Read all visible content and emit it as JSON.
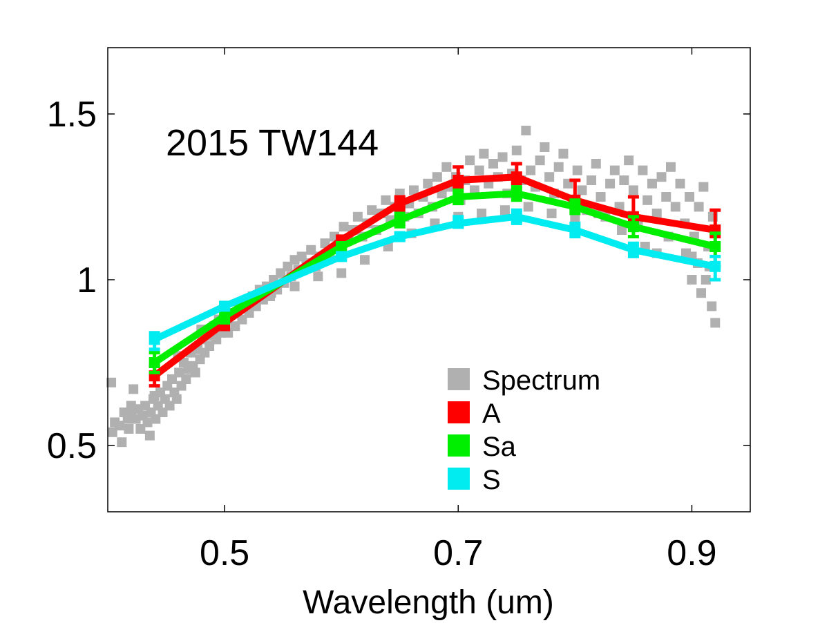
{
  "chart_data": {
    "type": "line",
    "title": "2015 TW144",
    "xlabel": "Wavelength (um)",
    "ylabel": "",
    "xlim": [
      0.4,
      0.95
    ],
    "ylim": [
      0.3,
      1.7
    ],
    "xticks": [
      0.5,
      0.7,
      0.9
    ],
    "xtick_labels": [
      "0.5",
      "0.7",
      "0.9"
    ],
    "yticks": [
      0.5,
      1.0,
      1.5
    ],
    "ytick_labels": [
      "0.5",
      "1",
      "1.5"
    ],
    "legend_position": "lower-right",
    "legend": [
      {
        "label": "Spectrum",
        "color": "#b0b0b0",
        "kind": "marker"
      },
      {
        "label": "A",
        "color": "#ff0000",
        "kind": "line"
      },
      {
        "label": "Sa",
        "color": "#00ee00",
        "kind": "line"
      },
      {
        "label": "S",
        "color": "#00ecf0",
        "kind": "line"
      }
    ],
    "spectrum": {
      "name": "Spectrum",
      "color": "#b0b0b0",
      "points": [
        [
          0.403,
          0.69
        ],
        [
          0.404,
          0.54
        ],
        [
          0.406,
          0.57
        ],
        [
          0.41,
          0.56
        ],
        [
          0.412,
          0.51
        ],
        [
          0.414,
          0.6
        ],
        [
          0.417,
          0.58
        ],
        [
          0.418,
          0.55
        ],
        [
          0.42,
          0.6
        ],
        [
          0.422,
          0.67
        ],
        [
          0.424,
          0.58
        ],
        [
          0.426,
          0.61
        ],
        [
          0.428,
          0.55
        ],
        [
          0.43,
          0.59
        ],
        [
          0.432,
          0.62
        ],
        [
          0.434,
          0.57
        ],
        [
          0.436,
          0.53
        ],
        [
          0.437,
          0.6
        ],
        [
          0.439,
          0.64
        ],
        [
          0.441,
          0.58
        ],
        [
          0.443,
          0.62
        ],
        [
          0.445,
          0.66
        ],
        [
          0.447,
          0.6
        ],
        [
          0.449,
          0.64
        ],
        [
          0.451,
          0.68
        ],
        [
          0.453,
          0.62
        ],
        [
          0.455,
          0.7
        ],
        [
          0.457,
          0.66
        ],
        [
          0.459,
          0.64
        ],
        [
          0.461,
          0.72
        ],
        [
          0.463,
          0.68
        ],
        [
          0.465,
          0.75
        ],
        [
          0.467,
          0.7
        ],
        [
          0.469,
          0.73
        ],
        [
          0.471,
          0.78
        ],
        [
          0.473,
          0.74
        ],
        [
          0.475,
          0.72
        ],
        [
          0.477,
          0.79
        ],
        [
          0.479,
          0.76
        ],
        [
          0.481,
          0.82
        ],
        [
          0.483,
          0.78
        ],
        [
          0.485,
          0.84
        ],
        [
          0.487,
          0.8
        ],
        [
          0.489,
          0.83
        ],
        [
          0.491,
          0.86
        ],
        [
          0.493,
          0.82
        ],
        [
          0.495,
          0.88
        ],
        [
          0.497,
          0.84
        ],
        [
          0.5,
          0.87
        ],
        [
          0.503,
          0.84
        ],
        [
          0.506,
          0.9
        ],
        [
          0.509,
          0.86
        ],
        [
          0.512,
          0.92
        ],
        [
          0.515,
          0.88
        ],
        [
          0.518,
          0.93
        ],
        [
          0.521,
          0.9
        ],
        [
          0.524,
          0.95
        ],
        [
          0.527,
          0.92
        ],
        [
          0.53,
          0.97
        ],
        [
          0.533,
          0.94
        ],
        [
          0.536,
          0.98
        ],
        [
          0.539,
          0.95
        ],
        [
          0.542,
          1.0
        ],
        [
          0.545,
          0.97
        ],
        [
          0.548,
          1.02
        ],
        [
          0.551,
          0.99
        ],
        [
          0.554,
          1.04
        ],
        [
          0.557,
          1.01
        ],
        [
          0.56,
          1.06
        ],
        [
          0.563,
          1.03
        ],
        [
          0.566,
          1.07
        ],
        [
          0.57,
          1.05
        ],
        [
          0.574,
          1.09
        ],
        [
          0.578,
          1.04
        ],
        [
          0.582,
          1.07
        ],
        [
          0.586,
          1.11
        ],
        [
          0.59,
          1.08
        ],
        [
          0.594,
          1.13
        ],
        [
          0.598,
          1.1
        ],
        [
          0.602,
          1.16
        ],
        [
          0.606,
          1.12
        ],
        [
          0.61,
          1.15
        ],
        [
          0.614,
          1.19
        ],
        [
          0.618,
          1.13
        ],
        [
          0.622,
          1.17
        ],
        [
          0.626,
          1.21
        ],
        [
          0.63,
          1.15
        ],
        [
          0.634,
          1.2
        ],
        [
          0.638,
          1.24
        ],
        [
          0.642,
          1.18
        ],
        [
          0.646,
          1.22
        ],
        [
          0.65,
          1.26
        ],
        [
          0.654,
          1.19
        ],
        [
          0.658,
          1.23
        ],
        [
          0.662,
          1.27
        ],
        [
          0.666,
          1.2
        ],
        [
          0.67,
          1.25
        ],
        [
          0.674,
          1.29
        ],
        [
          0.678,
          1.22
        ],
        [
          0.682,
          1.31
        ],
        [
          0.686,
          1.26
        ],
        [
          0.69,
          1.34
        ],
        [
          0.694,
          1.28
        ],
        [
          0.698,
          1.31
        ],
        [
          0.702,
          1.24
        ],
        [
          0.706,
          1.3
        ],
        [
          0.71,
          1.36
        ],
        [
          0.714,
          1.27
        ],
        [
          0.718,
          1.33
        ],
        [
          0.722,
          1.38
        ],
        [
          0.726,
          1.29
        ],
        [
          0.73,
          1.35
        ],
        [
          0.734,
          1.31
        ],
        [
          0.738,
          1.37
        ],
        [
          0.742,
          1.26
        ],
        [
          0.746,
          1.32
        ],
        [
          0.75,
          1.39
        ],
        [
          0.754,
          1.3
        ],
        [
          0.758,
          1.45
        ],
        [
          0.762,
          1.33
        ],
        [
          0.766,
          1.28
        ],
        [
          0.77,
          1.36
        ],
        [
          0.774,
          1.4
        ],
        [
          0.778,
          1.31
        ],
        [
          0.782,
          1.26
        ],
        [
          0.786,
          1.34
        ],
        [
          0.79,
          1.38
        ],
        [
          0.794,
          1.29
        ],
        [
          0.798,
          1.24
        ],
        [
          0.802,
          1.33
        ],
        [
          0.806,
          1.27
        ],
        [
          0.81,
          1.21
        ],
        [
          0.814,
          1.3
        ],
        [
          0.818,
          1.35
        ],
        [
          0.822,
          1.25
        ],
        [
          0.826,
          1.19
        ],
        [
          0.83,
          1.29
        ],
        [
          0.834,
          1.33
        ],
        [
          0.838,
          1.22
        ],
        [
          0.842,
          1.3
        ],
        [
          0.846,
          1.36
        ],
        [
          0.85,
          1.27
        ],
        [
          0.854,
          1.18
        ],
        [
          0.858,
          1.33
        ],
        [
          0.862,
          1.24
        ],
        [
          0.866,
          1.29
        ],
        [
          0.87,
          1.2
        ],
        [
          0.874,
          1.31
        ],
        [
          0.878,
          1.25
        ],
        [
          0.882,
          1.34
        ],
        [
          0.886,
          1.22
        ],
        [
          0.89,
          1.29
        ],
        [
          0.894,
          1.17
        ],
        [
          0.898,
          1.25
        ],
        [
          0.902,
          1.13
        ],
        [
          0.906,
          1.22
        ],
        [
          0.91,
          1.28
        ],
        [
          0.914,
          1.1
        ],
        [
          0.918,
          1.19
        ],
        [
          0.92,
          0.87
        ],
        [
          0.917,
          0.92
        ],
        [
          0.912,
          1.0
        ],
        [
          0.905,
          1.05
        ],
        [
          0.9,
          1.07
        ],
        [
          0.895,
          1.08
        ],
        [
          0.908,
          0.96
        ],
        [
          0.915,
          1.04
        ],
        [
          0.86,
          1.1
        ],
        [
          0.84,
          1.15
        ],
        [
          0.82,
          1.2
        ],
        [
          0.87,
          1.08
        ],
        [
          0.88,
          1.13
        ],
        [
          0.9,
          1.0
        ],
        [
          0.62,
          1.06
        ],
        [
          0.64,
          1.1
        ],
        [
          0.66,
          1.14
        ],
        [
          0.68,
          1.17
        ],
        [
          0.7,
          1.19
        ],
        [
          0.72,
          1.2
        ],
        [
          0.74,
          1.21
        ],
        [
          0.76,
          1.22
        ],
        [
          0.78,
          1.2
        ],
        [
          0.8,
          1.18
        ],
        [
          0.6,
          1.02
        ],
        [
          0.58,
          1.01
        ],
        [
          0.56,
          0.98
        ],
        [
          0.54,
          0.96
        ],
        [
          0.52,
          0.92
        ],
        [
          0.5,
          0.9
        ],
        [
          0.48,
          0.85
        ],
        [
          0.46,
          0.77
        ],
        [
          0.44,
          0.65
        ],
        [
          0.42,
          0.62
        ]
      ]
    },
    "series": [
      {
        "name": "A",
        "color": "#ff0000",
        "x": [
          0.44,
          0.5,
          0.6,
          0.65,
          0.7,
          0.75,
          0.8,
          0.85,
          0.92
        ],
        "values": [
          0.71,
          0.87,
          1.12,
          1.23,
          1.3,
          1.31,
          1.24,
          1.19,
          1.15
        ],
        "err_up": [
          0.03,
          0.02,
          0.01,
          0.02,
          0.04,
          0.04,
          0.06,
          0.06,
          0.06
        ],
        "err_down": [
          0.03,
          0.02,
          0.01,
          0.02,
          0.02,
          0.02,
          0.02,
          0.02,
          0.02
        ]
      },
      {
        "name": "Sa",
        "color": "#00ee00",
        "x": [
          0.44,
          0.5,
          0.6,
          0.65,
          0.7,
          0.75,
          0.8,
          0.85,
          0.92
        ],
        "values": [
          0.75,
          0.89,
          1.1,
          1.18,
          1.25,
          1.26,
          1.22,
          1.16,
          1.1
        ],
        "err_up": [
          0.03,
          0.02,
          0.01,
          0.02,
          0.02,
          0.02,
          0.02,
          0.03,
          0.04
        ],
        "err_down": [
          0.03,
          0.02,
          0.01,
          0.02,
          0.02,
          0.02,
          0.02,
          0.03,
          0.06
        ]
      },
      {
        "name": "S",
        "color": "#00ecf0",
        "x": [
          0.44,
          0.5,
          0.6,
          0.65,
          0.7,
          0.75,
          0.8,
          0.85,
          0.92
        ],
        "values": [
          0.82,
          0.92,
          1.07,
          1.13,
          1.17,
          1.19,
          1.15,
          1.09,
          1.04
        ],
        "err_up": [
          0.02,
          0.01,
          0.01,
          0.01,
          0.02,
          0.02,
          0.02,
          0.02,
          0.03
        ],
        "err_down": [
          0.03,
          0.01,
          0.01,
          0.01,
          0.01,
          0.02,
          0.02,
          0.02,
          0.04
        ]
      }
    ]
  }
}
